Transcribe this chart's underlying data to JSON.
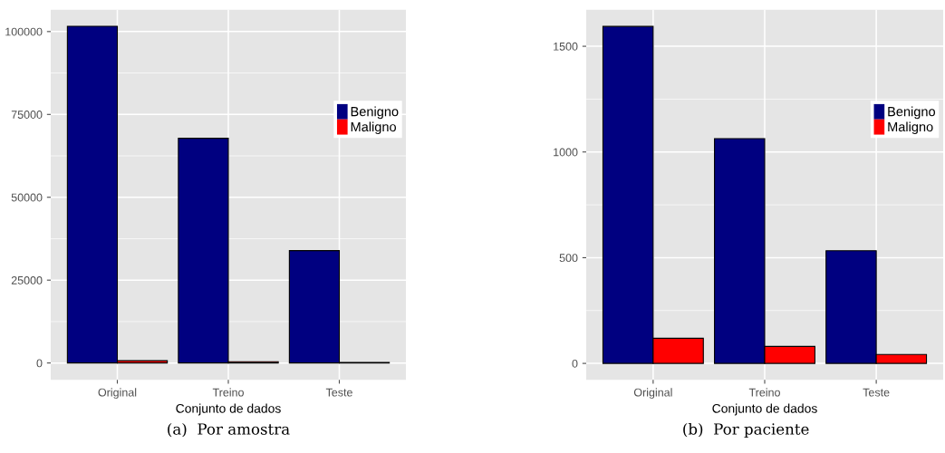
{
  "chart_data": [
    {
      "type": "bar",
      "xlabel": "Conjunto de dados",
      "categories": [
        "Original",
        "Treino",
        "Teste"
      ],
      "series": [
        {
          "name": "Benigno",
          "color": "#000080",
          "values": [
            101600,
            67800,
            33900
          ]
        },
        {
          "name": "Maligno",
          "color": "#ff0000",
          "values": [
            700,
            400,
            150
          ]
        }
      ],
      "ylim": [
        -5100,
        106600
      ],
      "yticks": [
        0,
        25000,
        50000,
        75000,
        100000
      ],
      "grid": true,
      "legend": "top right",
      "annotations": [
        "(a)  Por amostra"
      ]
    },
    {
      "type": "bar",
      "xlabel": "Conjunto de dados",
      "categories": [
        "Original",
        "Treino",
        "Teste"
      ],
      "series": [
        {
          "name": "Benigno",
          "color": "#000080",
          "values": [
            1594,
            1063,
            533
          ]
        },
        {
          "name": "Maligno",
          "color": "#ff0000",
          "values": [
            119,
            80,
            42
          ]
        }
      ],
      "ylim": [
        -78,
        1673
      ],
      "yticks": [
        0,
        500,
        1000,
        1500
      ],
      "grid": true,
      "legend": "top right",
      "annotations": [
        "(b)  Por paciente"
      ]
    }
  ]
}
